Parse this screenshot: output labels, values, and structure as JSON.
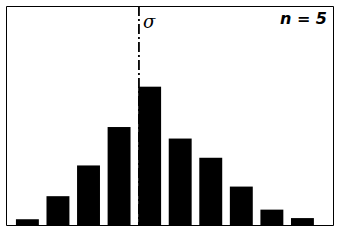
{
  "chart_data": {
    "type": "bar",
    "x": [
      1,
      2,
      3,
      4,
      5,
      6,
      7,
      8,
      9,
      10
    ],
    "values": [
      15,
      75,
      155,
      255,
      360,
      225,
      175,
      100,
      40,
      18
    ],
    "color": "#000000",
    "xlim": [
      0.3,
      11.0
    ],
    "ylim": [
      0,
      570
    ],
    "xticks": [],
    "yticks": [],
    "tick_labels": false,
    "annotations": [
      {
        "text": "σ",
        "x": 4.65
      },
      {
        "text": "n = 5"
      }
    ]
  }
}
